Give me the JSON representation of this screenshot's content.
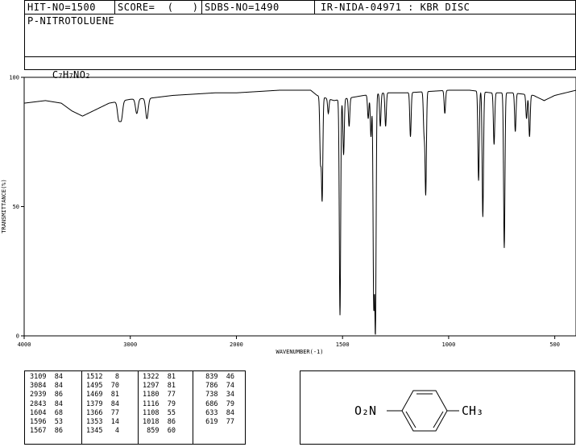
{
  "header": {
    "hit_no": "HIT-NO=1500",
    "score": "SCORE=  (   )",
    "sdbs_no": "SDBS-NO=1490",
    "ir_code": "IR-NIDA-04971 : KBR DISC"
  },
  "compound_name": "P-NITROTOLUENE",
  "formula": {
    "c": "C",
    "c_n": "7",
    "h": "H",
    "h_n": "7",
    "n": "N",
    "o": "O",
    "o_n": "2"
  },
  "chart_data": {
    "type": "line",
    "xlabel": "WAVENUMBER(-1)",
    "ylabel": "TRANSMITTANCE(%)",
    "xlim": [
      4000,
      400
    ],
    "ylim": [
      0,
      100
    ],
    "x_ticks": [
      4000,
      3000,
      2000,
      1500,
      1000,
      500
    ],
    "x_tick_labels": [
      "4000",
      "3000",
      "2000",
      "1500",
      "1000",
      "500"
    ],
    "y_ticks": [
      0,
      50,
      100
    ],
    "y_tick_labels": [
      "0",
      "50",
      "100"
    ],
    "baseline": [
      [
        4000,
        90
      ],
      [
        3800,
        91
      ],
      [
        3650,
        90
      ],
      [
        3550,
        87
      ],
      [
        3450,
        85
      ],
      [
        3350,
        87
      ],
      [
        3200,
        90
      ],
      [
        3000,
        91.5
      ],
      [
        2800,
        92
      ],
      [
        2600,
        93
      ],
      [
        2400,
        93.5
      ],
      [
        2200,
        94
      ],
      [
        2000,
        94
      ],
      [
        1800,
        95
      ],
      [
        1650,
        95
      ],
      [
        1620,
        93
      ],
      [
        1540,
        91
      ],
      [
        1470,
        92
      ],
      [
        1400,
        93
      ],
      [
        1300,
        94
      ],
      [
        1200,
        94
      ],
      [
        1000,
        95
      ],
      [
        900,
        95
      ],
      [
        800,
        94
      ],
      [
        700,
        94
      ],
      [
        600,
        93
      ],
      [
        550,
        91
      ],
      [
        500,
        93
      ],
      [
        450,
        94
      ],
      [
        400,
        95
      ]
    ],
    "peaks": [
      {
        "x": 3109,
        "t": 84
      },
      {
        "x": 3084,
        "t": 84
      },
      {
        "x": 2939,
        "t": 86
      },
      {
        "x": 2843,
        "t": 84
      },
      {
        "x": 1604,
        "t": 68
      },
      {
        "x": 1596,
        "t": 53
      },
      {
        "x": 1567,
        "t": 86
      },
      {
        "x": 1512,
        "t": 8
      },
      {
        "x": 1495,
        "t": 70
      },
      {
        "x": 1469,
        "t": 81
      },
      {
        "x": 1379,
        "t": 84
      },
      {
        "x": 1366,
        "t": 77
      },
      {
        "x": 1353,
        "t": 14
      },
      {
        "x": 1345,
        "t": 4
      },
      {
        "x": 1322,
        "t": 81
      },
      {
        "x": 1297,
        "t": 81
      },
      {
        "x": 1180,
        "t": 77
      },
      {
        "x": 1116,
        "t": 79
      },
      {
        "x": 1108,
        "t": 55
      },
      {
        "x": 1018,
        "t": 86
      },
      {
        "x": 859,
        "t": 60
      },
      {
        "x": 839,
        "t": 46
      },
      {
        "x": 786,
        "t": 74
      },
      {
        "x": 738,
        "t": 34
      },
      {
        "x": 686,
        "t": 79
      },
      {
        "x": 633,
        "t": 84
      },
      {
        "x": 619,
        "t": 77
      }
    ]
  },
  "peak_table": [
    [
      "3109  84",
      "3084  84",
      "2939  86",
      "2843  84",
      "1604  68",
      "1596  53",
      "1567  86"
    ],
    [
      "1512   8",
      "1495  70",
      "1469  81",
      "1379  84",
      "1366  77",
      "1353  14",
      "1345   4"
    ],
    [
      "1322  81",
      "1297  81",
      "1180  77",
      "1116  79",
      "1108  55",
      "1018  86",
      " 859  60"
    ],
    [
      " 839  46",
      " 786  74",
      " 738  34",
      " 686  79",
      " 633  84",
      " 619  77"
    ]
  ],
  "structure": {
    "left_group": "O₂N",
    "right_group": "CH₃"
  }
}
